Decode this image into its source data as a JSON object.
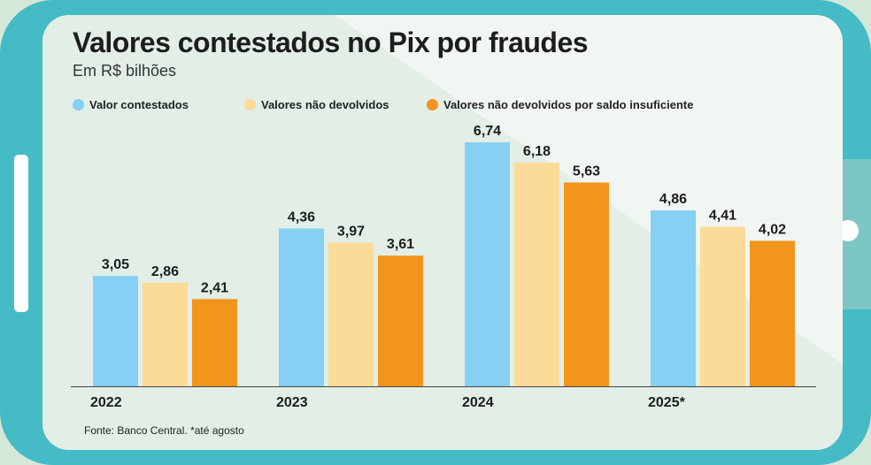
{
  "colors": {
    "series1": "#85d0f3",
    "series2": "#fcdb98",
    "series3": "#f1951d",
    "frame": "#45bbc5",
    "screen": "#f1f6f2",
    "diagonal": "#e2eee6",
    "text": "#1d1d1d"
  },
  "chart_data": {
    "type": "bar",
    "title": "Valores contestados no Pix por fraudes",
    "subtitle": "Em R$ bilhões",
    "categories": [
      "2022",
      "2023",
      "2024",
      "2025*"
    ],
    "series": [
      {
        "name": "Valor contestados",
        "values": [
          3.05,
          4.36,
          6.74,
          4.86
        ],
        "labels": [
          "3,05",
          "4,36",
          "6,74",
          "4,86"
        ]
      },
      {
        "name": "Valores não devolvidos",
        "values": [
          2.86,
          3.97,
          6.18,
          4.41
        ],
        "labels": [
          "2,86",
          "3,97",
          "6,18",
          "4,41"
        ]
      },
      {
        "name": "Valores não devolvidos por saldo insuficiente",
        "values": [
          2.41,
          3.61,
          5.63,
          4.02
        ],
        "labels": [
          "2,41",
          "3,61",
          "5,63",
          "4,02"
        ]
      }
    ],
    "ylim": [
      0,
      6.74
    ],
    "grid": false,
    "legend": "top-left",
    "source": "Fonte: Banco Central. *até agosto"
  }
}
